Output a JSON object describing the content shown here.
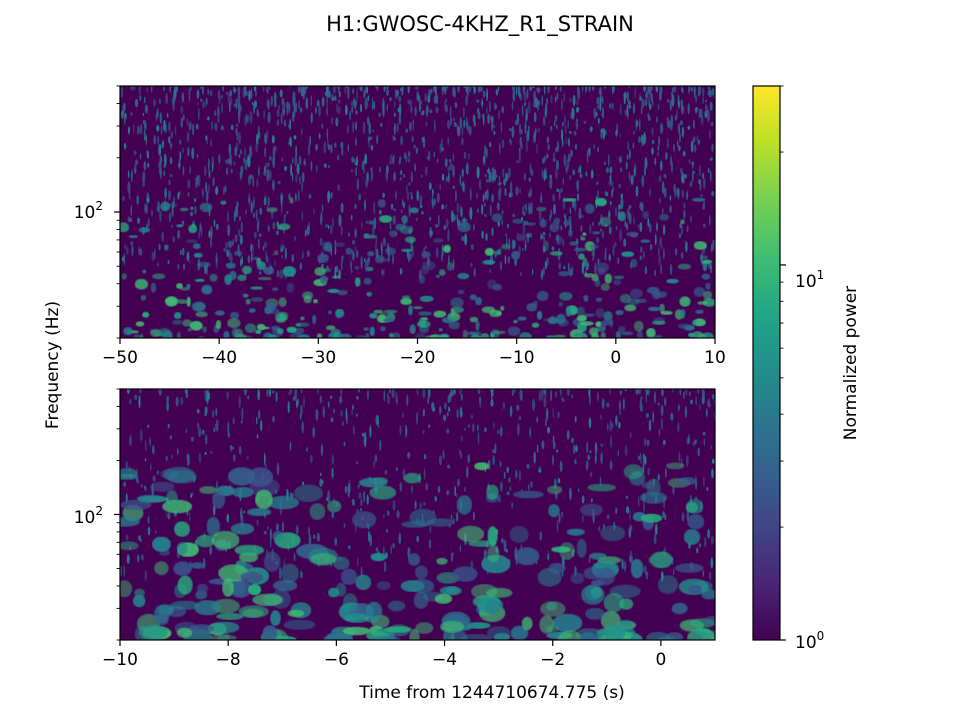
{
  "chart_data": {
    "type": "heatmap",
    "title": "H1:GWOSC-4KHZ_R1_STRAIN",
    "ylabel": "Frequency (Hz)",
    "xlabel": "Time from 1244710674.775 (s)",
    "yscale": "log",
    "panels": [
      {
        "xlim": [
          -50,
          10
        ],
        "xticks": [
          -50,
          -40,
          -30,
          -20,
          -10,
          0,
          10
        ],
        "xtick_labels": [
          "−50",
          "−40",
          "−30",
          "−20",
          "−10",
          "0",
          "10"
        ],
        "ylim": [
          20,
          500
        ],
        "yticks": [
          100
        ],
        "colormap": "viridis",
        "note": "Q-transform style normalized power; broadband noise with denser low-frequency blobs"
      },
      {
        "xlim": [
          -10,
          1
        ],
        "xticks": [
          -10,
          -8,
          -6,
          -4,
          -2,
          0
        ],
        "xtick_labels": [
          "−10",
          "−8",
          "−6",
          "−4",
          "−2",
          "0"
        ],
        "ylim": [
          20,
          500
        ],
        "yticks": [
          100
        ],
        "colormap": "viridis"
      }
    ],
    "colorbar": {
      "label": "Normalized power",
      "scale": "log",
      "range": [
        1,
        30
      ],
      "ticks": [
        1,
        10
      ],
      "colormap": "viridis"
    },
    "ytick_base": "10",
    "ytick_exp": "2",
    "cbar_tick_base": [
      "10",
      "10"
    ],
    "cbar_tick_exp": [
      "0",
      "1"
    ]
  }
}
